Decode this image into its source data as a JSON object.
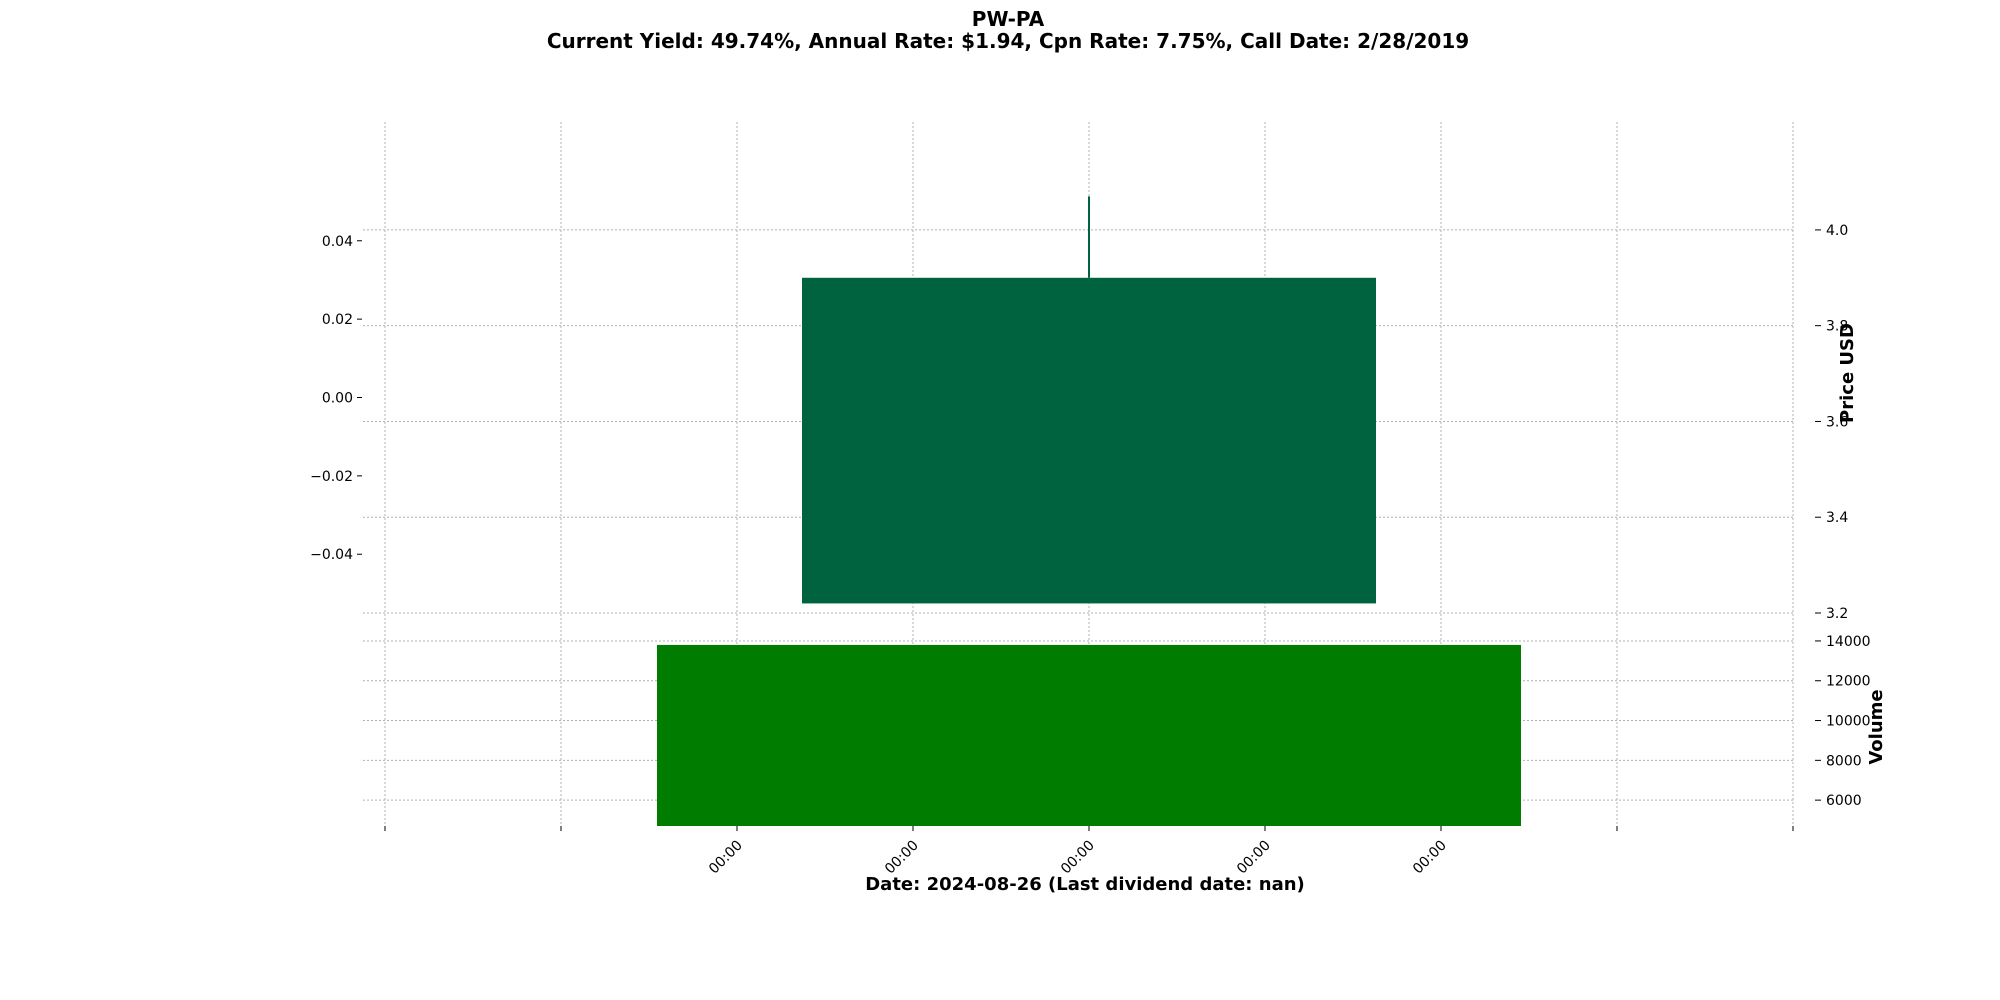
{
  "chart_data": {
    "type": "candlestick",
    "title": "PW-PA",
    "subtitle": "Current Yield: 49.74%, Annual Rate: $1.94, Cpn Rate: 7.75%, Call Date: 2/28/2019",
    "xlabel": "Date: 2024-08-26   (Last dividend date: nan)",
    "x_tick_labels": [
      "00:00",
      "00:00",
      "00:00",
      "00:00",
      "00:00"
    ],
    "price_panel": {
      "ylabel": "Price USD",
      "ylim": [
        3.2,
        4.1
      ],
      "right_ticks": [
        3.2,
        3.4,
        3.6,
        3.8,
        4.0
      ],
      "left_ticks": [
        "0.04",
        "0.02",
        "0.00",
        "−0.02",
        "−0.04"
      ],
      "left_tick_values": [
        0.04,
        0.02,
        0.0,
        -0.02,
        -0.04
      ],
      "left_ylim": [
        -0.055,
        0.055
      ],
      "candle": {
        "open": 3.22,
        "close": 3.9,
        "high": 4.07,
        "low": 3.22
      },
      "color": "#006340"
    },
    "volume_panel": {
      "ylabel": "Volume",
      "ylim": [
        4700,
        14500
      ],
      "ticks": [
        6000,
        8000,
        10000,
        12000,
        14000
      ],
      "tick_labels": [
        "6000",
        "8000",
        "10000",
        "12000",
        "14000"
      ],
      "value": 13800,
      "color": "#007c00"
    }
  }
}
